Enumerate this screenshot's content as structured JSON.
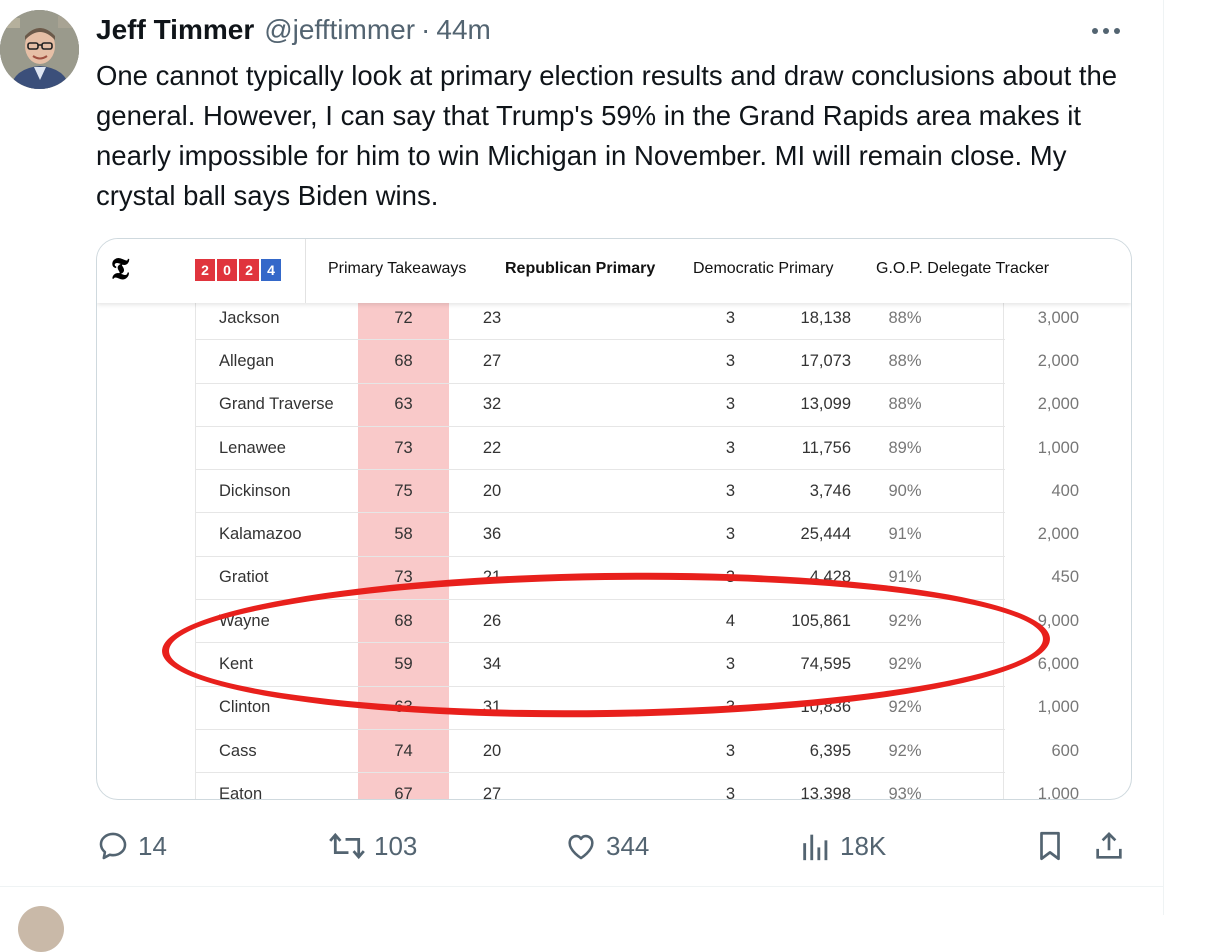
{
  "tweet": {
    "display_name": "Jeff Timmer",
    "handle": "@jefftimmer",
    "separator": "·",
    "time": "44m",
    "text": "One cannot typically look at primary election results and draw conclusions about the general. However, I can say that Trump's 59% in the Grand Rapids area makes it nearly impossible for him to win Michigan in November. MI will remain close. My crystal ball says Biden wins.",
    "more_icon": "ellipsis-icon"
  },
  "nyt": {
    "logo": "𝕿",
    "year_digits": [
      "2",
      "0",
      "2",
      "4"
    ],
    "nav": [
      "Primary Takeaways",
      "Republican Primary",
      "Democratic Primary",
      "G.O.P. Delegate Tracker"
    ],
    "active_nav": "Republican Primary",
    "colors": {
      "red": "#e0343d",
      "blue": "#3468c9",
      "trump_column": "#f9c9c9",
      "circle": "#e8201c"
    }
  },
  "table": {
    "rows": [
      {
        "county": "Jackson",
        "trump": "72",
        "haley": "23",
        "delegates": "3",
        "votes": "18,138",
        "reporting": "88%",
        "est": "3,000"
      },
      {
        "county": "Allegan",
        "trump": "68",
        "haley": "27",
        "delegates": "3",
        "votes": "17,073",
        "reporting": "88%",
        "est": "2,000"
      },
      {
        "county": "Grand Traverse",
        "trump": "63",
        "haley": "32",
        "delegates": "3",
        "votes": "13,099",
        "reporting": "88%",
        "est": "2,000"
      },
      {
        "county": "Lenawee",
        "trump": "73",
        "haley": "22",
        "delegates": "3",
        "votes": "11,756",
        "reporting": "89%",
        "est": "1,000"
      },
      {
        "county": "Dickinson",
        "trump": "75",
        "haley": "20",
        "delegates": "3",
        "votes": "3,746",
        "reporting": "90%",
        "est": "400"
      },
      {
        "county": "Kalamazoo",
        "trump": "58",
        "haley": "36",
        "delegates": "3",
        "votes": "25,444",
        "reporting": "91%",
        "est": "2,000"
      },
      {
        "county": "Gratiot",
        "trump": "73",
        "haley": "21",
        "delegates": "3",
        "votes": "4,428",
        "reporting": "91%",
        "est": "450"
      },
      {
        "county": "Wayne",
        "trump": "68",
        "haley": "26",
        "delegates": "4",
        "votes": "105,861",
        "reporting": "92%",
        "est": "9,000"
      },
      {
        "county": "Kent",
        "trump": "59",
        "haley": "34",
        "delegates": "3",
        "votes": "74,595",
        "reporting": "92%",
        "est": "6,000"
      },
      {
        "county": "Clinton",
        "trump": "63",
        "haley": "31",
        "delegates": "3",
        "votes": "10,836",
        "reporting": "92%",
        "est": "1,000"
      },
      {
        "county": "Cass",
        "trump": "74",
        "haley": "20",
        "delegates": "3",
        "votes": "6,395",
        "reporting": "92%",
        "est": "600"
      },
      {
        "county": "Eaton",
        "trump": "67",
        "haley": "27",
        "delegates": "3",
        "votes": "13,398",
        "reporting": "93%",
        "est": "1,000"
      }
    ]
  },
  "actions": {
    "replies": {
      "icon": "reply-icon",
      "count": "14"
    },
    "reposts": {
      "icon": "repost-icon",
      "count": "103"
    },
    "likes": {
      "icon": "heart-icon",
      "count": "344"
    },
    "views": {
      "icon": "views-icon",
      "count": "18K"
    },
    "bookmark": {
      "icon": "bookmark-icon"
    },
    "share": {
      "icon": "share-icon"
    }
  }
}
